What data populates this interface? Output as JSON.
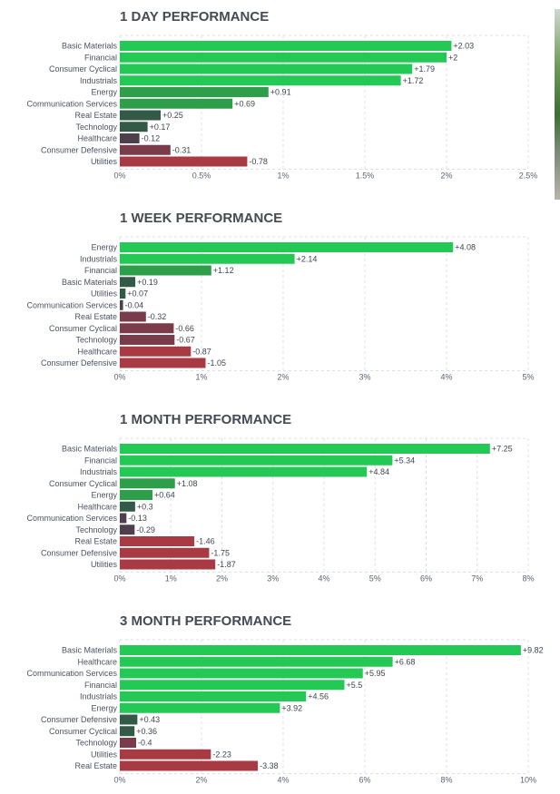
{
  "colors": {
    "pos_high": "#24c855",
    "pos_mid": "#2e9e4b",
    "pos_low": "#335a47",
    "neg_low": "#4d3f4c",
    "neg_mid": "#7a3c4a",
    "neg_high": "#a83a43"
  },
  "chart_data": [
    {
      "type": "bar",
      "orientation": "horizontal",
      "title": "1 DAY PERFORMANCE",
      "categories": [
        "Basic Materials",
        "Financial",
        "Consumer Cyclical",
        "Industrials",
        "Energy",
        "Communication Services",
        "Real Estate",
        "Technology",
        "Healthcare",
        "Consumer Defensive",
        "Utilities"
      ],
      "values": [
        2.03,
        2,
        1.79,
        1.72,
        0.91,
        0.69,
        0.25,
        0.17,
        -0.12,
        -0.31,
        -0.78
      ],
      "value_labels": [
        "+2.03",
        "+2",
        "+1.79",
        "+1.72",
        "+0.91",
        "+0.69",
        "+0.25",
        "+0.17",
        "-0.12",
        "-0.31",
        "-0.78"
      ],
      "xlim": [
        0,
        2.5
      ],
      "ticks": [
        0,
        0.5,
        1,
        1.5,
        2,
        2.5
      ],
      "tick_labels": [
        "0%",
        "0.5%",
        "1%",
        "1.5%",
        "2%",
        "2.5%"
      ],
      "grid": true
    },
    {
      "type": "bar",
      "orientation": "horizontal",
      "title": "1 WEEK PERFORMANCE",
      "categories": [
        "Energy",
        "Industrials",
        "Financial",
        "Basic Materials",
        "Utilities",
        "Communication Services",
        "Real Estate",
        "Consumer Cyclical",
        "Technology",
        "Healthcare",
        "Consumer Defensive"
      ],
      "values": [
        4.08,
        2.14,
        1.12,
        0.19,
        0.07,
        -0.04,
        -0.32,
        -0.66,
        -0.67,
        -0.87,
        -1.05
      ],
      "value_labels": [
        "+4.08",
        "+2.14",
        "+1.12",
        "+0.19",
        "+0.07",
        "-0.04",
        "-0.32",
        "-0.66",
        "-0.67",
        "-0.87",
        "-1.05"
      ],
      "xlim": [
        0,
        5
      ],
      "ticks": [
        0,
        1,
        2,
        3,
        4,
        5
      ],
      "tick_labels": [
        "0%",
        "1%",
        "2%",
        "3%",
        "4%",
        "5%"
      ],
      "grid": true
    },
    {
      "type": "bar",
      "orientation": "horizontal",
      "title": "1 MONTH PERFORMANCE",
      "categories": [
        "Basic Materials",
        "Financial",
        "Industrials",
        "Consumer Cyclical",
        "Energy",
        "Healthcare",
        "Communication Services",
        "Technology",
        "Real Estate",
        "Consumer Defensive",
        "Utilities"
      ],
      "values": [
        7.25,
        5.34,
        4.84,
        1.08,
        0.64,
        0.3,
        -0.13,
        -0.29,
        -1.46,
        -1.75,
        -1.87
      ],
      "value_labels": [
        "+7.25",
        "+5.34",
        "+4.84",
        "+1.08",
        "+0.64",
        "+0.3",
        "-0.13",
        "-0.29",
        "-1.46",
        "-1.75",
        "-1.87"
      ],
      "xlim": [
        0,
        8
      ],
      "ticks": [
        0,
        1,
        2,
        3,
        4,
        5,
        6,
        7,
        8
      ],
      "tick_labels": [
        "0%",
        "1%",
        "2%",
        "3%",
        "4%",
        "5%",
        "6%",
        "7%",
        "8%"
      ],
      "grid": true
    },
    {
      "type": "bar",
      "orientation": "horizontal",
      "title": "3 MONTH PERFORMANCE",
      "categories": [
        "Basic Materials",
        "Healthcare",
        "Communication Services",
        "Financial",
        "Industrials",
        "Energy",
        "Consumer Defensive",
        "Consumer Cyclical",
        "Technology",
        "Utilities",
        "Real Estate"
      ],
      "values": [
        9.82,
        6.68,
        5.95,
        5.5,
        4.56,
        3.92,
        0.43,
        0.36,
        -0.4,
        -2.23,
        -3.38
      ],
      "value_labels": [
        "+9.82",
        "+6.68",
        "+5.95",
        "+5.5",
        "+4.56",
        "+3.92",
        "+0.43",
        "+0.36",
        "-0.4",
        "-2.23",
        "-3.38"
      ],
      "xlim": [
        0,
        10
      ],
      "ticks": [
        0,
        2,
        4,
        6,
        8,
        10
      ],
      "tick_labels": [
        "0%",
        "2%",
        "4%",
        "6%",
        "8%",
        "10%"
      ],
      "grid": true
    }
  ]
}
